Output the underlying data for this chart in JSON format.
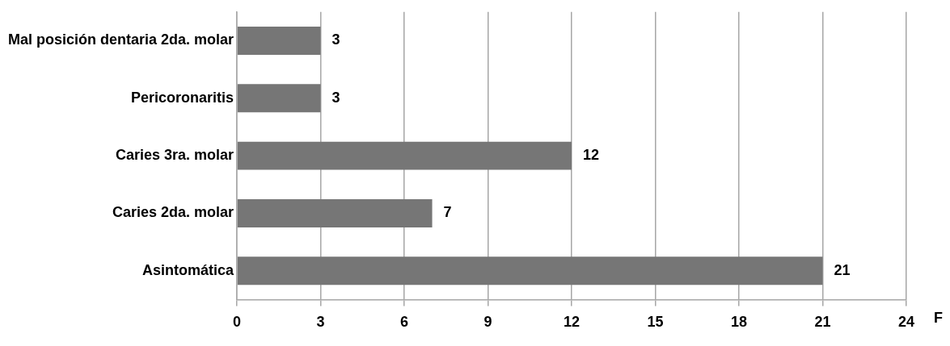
{
  "chart_data": {
    "type": "bar",
    "orientation": "horizontal",
    "xlabel": "F",
    "categories": [
      "Mal posición dentaria 2da. molar",
      "Pericoronaritis",
      "Caries 3ra. molar",
      "Caries 2da. molar",
      "Asintomática"
    ],
    "values": [
      3,
      3,
      12,
      7,
      21
    ],
    "color": "#767676",
    "xlim": [
      0,
      24
    ],
    "xticks": [
      0,
      3,
      6,
      9,
      12,
      15,
      18,
      21,
      24
    ],
    "grid": "x",
    "legend": false,
    "data_labels": true
  }
}
